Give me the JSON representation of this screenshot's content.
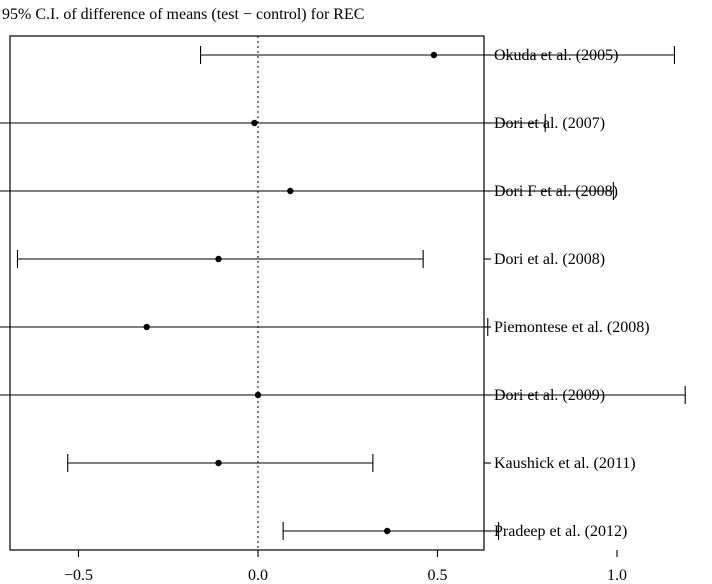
{
  "chart_data": {
    "type": "forest",
    "title": "95% C.I. of difference of means (test − control) for REC",
    "xlabel": "",
    "ylabel": "",
    "xlim": [
      -1.35,
      1.3
    ],
    "x_ticks": [
      -1.0,
      -0.5,
      0.0,
      0.5,
      1.0
    ],
    "x_tick_labels": [
      "−1.0",
      "−0.5",
      "0.0",
      "0.5",
      "1.0"
    ],
    "reference_line": 0.0,
    "grid": false,
    "studies": [
      {
        "label": "Okuda et al. (2005)",
        "estimate": 0.49,
        "lower": -0.16,
        "upper": 1.16
      },
      {
        "label": "Dori et al. (2007)",
        "estimate": -0.01,
        "lower": -0.81,
        "upper": 0.8
      },
      {
        "label": "Dori F et al. (2008)",
        "estimate": 0.09,
        "lower": -0.79,
        "upper": 0.99
      },
      {
        "label": "Dori et al. (2008)",
        "estimate": -0.11,
        "lower": -0.67,
        "upper": 0.46
      },
      {
        "label": "Piemontese et al. (2008)",
        "estimate": -0.31,
        "lower": -1.24,
        "upper": 0.64
      },
      {
        "label": "Dori et al. (2009)",
        "estimate": 0.0,
        "lower": -1.18,
        "upper": 1.19
      },
      {
        "label": "Kaushick et al. (2011)",
        "estimate": -0.11,
        "lower": -0.53,
        "upper": 0.32
      },
      {
        "label": "Pradeep et al. (2012)",
        "estimate": 0.36,
        "lower": 0.07,
        "upper": 0.67
      }
    ]
  }
}
